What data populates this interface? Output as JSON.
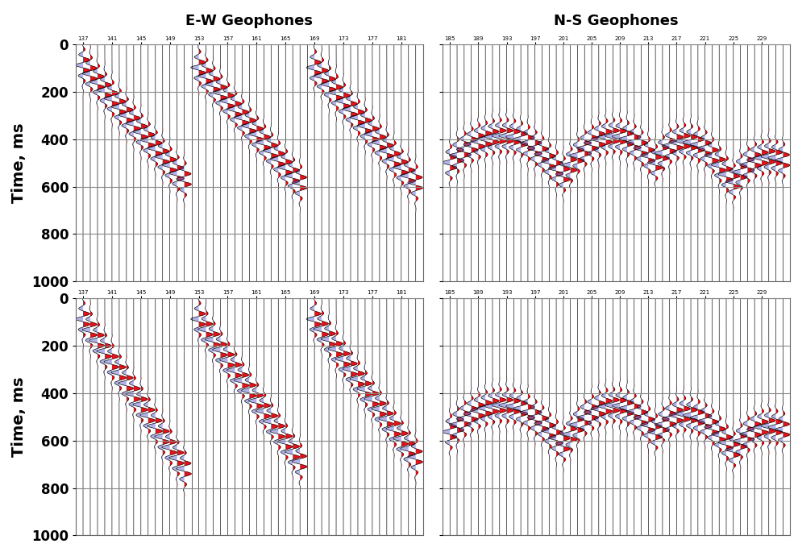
{
  "chart_data": [
    {
      "type": "seismic",
      "title": "E-W Geophones",
      "ylabel": "Time, ms",
      "xlim": [
        136,
        184
      ],
      "xticks": [
        137,
        141,
        145,
        149,
        153,
        157,
        161,
        165,
        169,
        173,
        177,
        181
      ],
      "ylim": [
        1000,
        0
      ],
      "yticks": [
        0,
        200,
        400,
        600,
        800,
        1000
      ],
      "grid": true,
      "events": [
        {
          "start_trace": 137,
          "times": [
            20,
            55,
            90,
            125,
            160,
            195,
            230,
            265,
            300,
            335,
            370,
            405,
            440,
            475,
            500
          ]
        },
        {
          "start_trace": 153,
          "times": [
            30,
            65,
            100,
            135,
            170,
            205,
            240,
            275,
            310,
            345,
            380,
            415,
            450,
            485,
            515
          ]
        },
        {
          "start_trace": 169,
          "times": [
            30,
            65,
            100,
            135,
            170,
            205,
            240,
            275,
            310,
            345,
            380,
            415,
            450,
            485,
            515
          ]
        }
      ]
    },
    {
      "type": "seismic",
      "title": "N-S Geophones",
      "xlim": [
        184,
        233
      ],
      "xticks": [
        185,
        189,
        193,
        197,
        201,
        205,
        209,
        213,
        217,
        221,
        225,
        229
      ],
      "ylim": [
        1000,
        0
      ],
      "yticks": [
        0,
        200,
        400,
        600,
        800,
        1000
      ],
      "grid": true,
      "tick_labels": "x",
      "events": [
        {
          "start_trace": 185,
          "times": [
            430,
            400,
            375,
            355,
            340,
            330,
            322,
            318,
            318,
            322,
            332,
            348,
            370,
            395,
            425,
            455,
            480,
            440,
            400,
            370,
            348,
            332,
            322,
            318,
            320,
            330,
            345,
            370,
            400,
            430,
            390,
            360,
            345,
            340,
            345,
            355,
            370,
            400,
            440,
            480,
            510,
            470,
            440,
            420,
            410,
            405,
            410,
            420
          ]
        }
      ]
    },
    {
      "type": "seismic",
      "ylabel": "Time, ms",
      "xlim": [
        136,
        184
      ],
      "xticks": [
        137,
        141,
        145,
        149,
        153,
        157,
        161,
        165,
        169,
        173,
        177,
        181
      ],
      "ylim": [
        1000,
        0
      ],
      "yticks": [
        0,
        200,
        400,
        600,
        800,
        1000
      ],
      "grid": true,
      "events": [
        {
          "start_trace": 137,
          "times": [
            20,
            65,
            110,
            155,
            200,
            245,
            290,
            335,
            380,
            425,
            470,
            515,
            560,
            605,
            650
          ]
        },
        {
          "start_trace": 153,
          "times": [
            20,
            63,
            106,
            149,
            192,
            235,
            278,
            321,
            364,
            407,
            450,
            493,
            536,
            579,
            620
          ]
        },
        {
          "start_trace": 169,
          "times": [
            20,
            62,
            104,
            146,
            188,
            230,
            272,
            314,
            356,
            398,
            440,
            482,
            524,
            566,
            600
          ]
        }
      ]
    },
    {
      "type": "seismic",
      "xlim": [
        184,
        233
      ],
      "xticks": [
        185,
        189,
        193,
        197,
        201,
        205,
        209,
        213,
        217,
        221,
        225,
        229
      ],
      "ylim": [
        1000,
        0
      ],
      "yticks": [
        0,
        200,
        400,
        600,
        800,
        1000
      ],
      "grid": true,
      "tick_labels": "x",
      "events": [
        {
          "start_trace": 185,
          "times": [
            495,
            465,
            440,
            420,
            405,
            395,
            387,
            383,
            383,
            387,
            397,
            413,
            435,
            460,
            490,
            520,
            545,
            505,
            465,
            435,
            413,
            397,
            387,
            383,
            385,
            395,
            410,
            435,
            465,
            495,
            465,
            440,
            425,
            420,
            425,
            435,
            450,
            475,
            505,
            540,
            570,
            535,
            505,
            485,
            475,
            470,
            475,
            485
          ]
        }
      ]
    }
  ]
}
